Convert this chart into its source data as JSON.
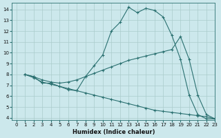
{
  "xlabel": "Humidex (Indice chaleur)",
  "ylabel": "",
  "bg_color": "#cce8ec",
  "grid_color": "#aacccc",
  "line_color": "#2a7070",
  "xlim": [
    -0.5,
    23
  ],
  "ylim": [
    3.8,
    14.6
  ],
  "xticks": [
    0,
    1,
    2,
    3,
    4,
    5,
    6,
    7,
    8,
    9,
    10,
    11,
    12,
    13,
    14,
    15,
    16,
    17,
    18,
    19,
    20,
    21,
    22,
    23
  ],
  "yticks": [
    4,
    5,
    6,
    7,
    8,
    9,
    10,
    11,
    12,
    13,
    14
  ],
  "lines": [
    {
      "x": [
        1,
        2,
        3,
        4,
        5,
        6,
        7,
        8,
        9,
        10,
        11,
        12,
        13,
        14,
        15,
        16,
        17,
        18,
        19,
        20,
        21,
        22,
        23
      ],
      "y": [
        8.0,
        7.8,
        7.2,
        7.2,
        6.9,
        6.6,
        6.5,
        7.8,
        8.8,
        9.8,
        12.0,
        12.8,
        14.2,
        13.7,
        14.1,
        13.9,
        13.3,
        11.6,
        9.4,
        6.1,
        4.3,
        3.9,
        3.9
      ]
    },
    {
      "x": [
        1,
        2,
        3,
        4,
        5,
        6,
        7,
        8,
        9,
        10,
        11,
        12,
        13,
        14,
        15,
        16,
        17,
        18,
        19,
        20,
        21,
        22,
        23
      ],
      "y": [
        8.0,
        7.8,
        7.5,
        7.3,
        7.2,
        7.3,
        7.5,
        7.8,
        8.1,
        8.4,
        8.7,
        9.0,
        9.3,
        9.5,
        9.7,
        9.9,
        10.1,
        10.3,
        11.5,
        9.4,
        6.1,
        4.3,
        3.9
      ]
    },
    {
      "x": [
        1,
        2,
        3,
        4,
        5,
        6,
        7,
        8,
        9,
        10,
        11,
        12,
        13,
        14,
        15,
        16,
        17,
        18,
        19,
        20,
        21,
        22,
        23
      ],
      "y": [
        8.0,
        7.7,
        7.3,
        7.1,
        6.9,
        6.7,
        6.5,
        6.3,
        6.1,
        5.9,
        5.7,
        5.5,
        5.3,
        5.1,
        4.9,
        4.7,
        4.6,
        4.5,
        4.4,
        4.3,
        4.2,
        4.1,
        3.9
      ]
    }
  ]
}
